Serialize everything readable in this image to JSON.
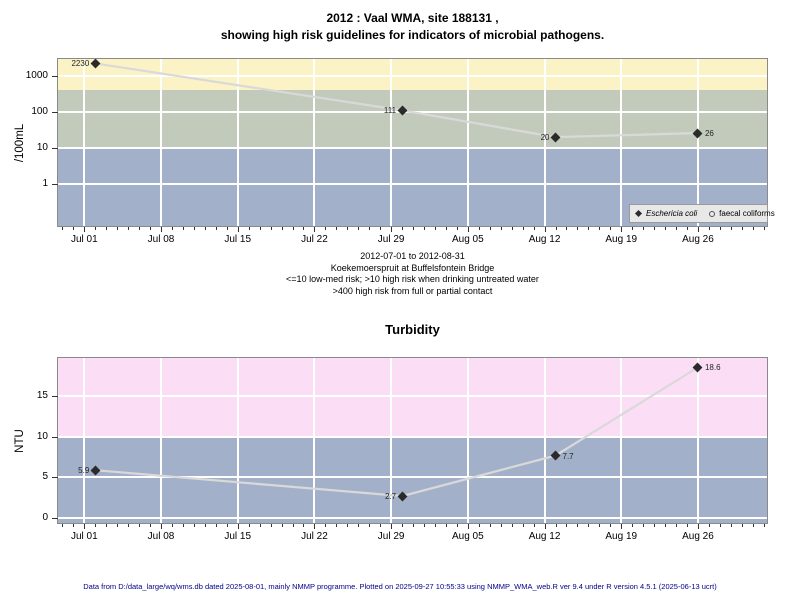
{
  "page": {
    "footer": "Data from D:/data_large/wq/wms.db dated 2025-08-01, mainly NMMP programme. Plotted on 2025-09-27 10:55:33 using NMMP_WMA_web.R ver 9.4 under R version 4.5.1 (2025-06-13 ucrt)",
    "footer_color": "#00008B",
    "background_color": "#FFFFFF"
  },
  "chart_data": [
    {
      "type": "line",
      "name": "microbial-pathogens",
      "title_line1": "2012 : Vaal WMA, site 188131 ,",
      "title_line2": "showing high risk guidelines for indicators of microbial pathogens.",
      "ylabel": "/100mL",
      "yscale": "log",
      "ylim": [
        0.068,
        2960
      ],
      "yticks": [
        1,
        10,
        100,
        1000
      ],
      "x_domain_days": [
        -2.4,
        62.3
      ],
      "x_ticks": [
        {
          "label": "Jul 01",
          "day": 0
        },
        {
          "label": "Jul 08",
          "day": 7
        },
        {
          "label": "Jul 15",
          "day": 14
        },
        {
          "label": "Jul 22",
          "day": 21
        },
        {
          "label": "Jul 29",
          "day": 28
        },
        {
          "label": "Aug 05",
          "day": 35
        },
        {
          "label": "Aug 12",
          "day": 42
        },
        {
          "label": "Aug 19",
          "day": 49
        },
        {
          "label": "Aug 26",
          "day": 56
        }
      ],
      "grid": true,
      "grid_color": "#FFFFFF",
      "line_color": "#D9D9D9",
      "point_color": "#2B2B2B",
      "bands": [
        {
          "name": "high-risk-full-or-partial-contact",
          "from": 400,
          "to": 2960,
          "color": "#FBF3C6"
        },
        {
          "name": "high-risk-drinking-untreated",
          "from": 10,
          "to": 400,
          "color": "#C2CBBB"
        },
        {
          "name": "low-med-risk",
          "from": 0.068,
          "to": 10,
          "color": "#A2B1C9"
        }
      ],
      "series": [
        {
          "name": "Eschericia coli",
          "marker": "filled-diamond",
          "points": [
            {
              "date": "Jul 02",
              "day": 1,
              "value": 2230,
              "label": "2230",
              "label_side": "left"
            },
            {
              "date": "Jul 30",
              "day": 29,
              "value": 111,
              "label": "111",
              "label_side": "left"
            },
            {
              "date": "Aug 13",
              "day": 43,
              "value": 20,
              "label": "20",
              "label_side": "left"
            },
            {
              "date": "Aug 26",
              "day": 56,
              "value": 26,
              "label": "26",
              "label_side": "right"
            }
          ]
        },
        {
          "name": "faecal coliforms",
          "marker": "open-circle",
          "points": []
        }
      ],
      "legend": {
        "position": "bottom-right",
        "entries": [
          {
            "symbol": "filled-diamond",
            "label": "Eschericia coli",
            "italic": true
          },
          {
            "symbol": "open-circle",
            "label": "faecal coliforms",
            "italic": false
          }
        ]
      },
      "subtitle_lines": [
        "2012-07-01 to 2012-08-31",
        "Koekemoerspruit at Buffelsfontein Bridge",
        "<=10 low-med risk; >10 high risk when drinking untreated water",
        ">400 high risk from full or partial contact"
      ]
    },
    {
      "type": "line",
      "name": "turbidity",
      "title": "Turbidity",
      "ylabel": "NTU",
      "yscale": "linear",
      "ylim": [
        -0.62,
        19.75
      ],
      "yticks": [
        0,
        5,
        10,
        15
      ],
      "x_domain_days": [
        -2.4,
        62.3
      ],
      "x_ticks": [
        {
          "label": "Jul 01",
          "day": 0
        },
        {
          "label": "Jul 08",
          "day": 7
        },
        {
          "label": "Jul 15",
          "day": 14
        },
        {
          "label": "Jul 22",
          "day": 21
        },
        {
          "label": "Jul 29",
          "day": 28
        },
        {
          "label": "Aug 05",
          "day": 35
        },
        {
          "label": "Aug 12",
          "day": 42
        },
        {
          "label": "Aug 19",
          "day": 49
        },
        {
          "label": "Aug 26",
          "day": 56
        }
      ],
      "grid": true,
      "grid_color": "#FFFFFF",
      "line_color": "#D9D9D9",
      "point_color": "#2B2B2B",
      "bands": [
        {
          "name": "above-10-ntu",
          "from": 10,
          "to": 19.75,
          "color": "#FBDEF5"
        },
        {
          "name": "below-10-ntu",
          "from": -0.62,
          "to": 10,
          "color": "#A2B1C9"
        }
      ],
      "series": [
        {
          "name": "Turbidity",
          "marker": "filled-diamond",
          "points": [
            {
              "date": "Jul 02",
              "day": 1,
              "value": 5.9,
              "label": "5.9",
              "label_side": "left"
            },
            {
              "date": "Jul 30",
              "day": 29,
              "value": 2.7,
              "label": "2.7",
              "label_side": "left"
            },
            {
              "date": "Aug 13",
              "day": 43,
              "value": 7.7,
              "label": "7.7",
              "label_side": "right"
            },
            {
              "date": "Aug 26",
              "day": 56,
              "value": 18.6,
              "label": "18.6",
              "label_side": "right"
            }
          ]
        }
      ]
    }
  ]
}
